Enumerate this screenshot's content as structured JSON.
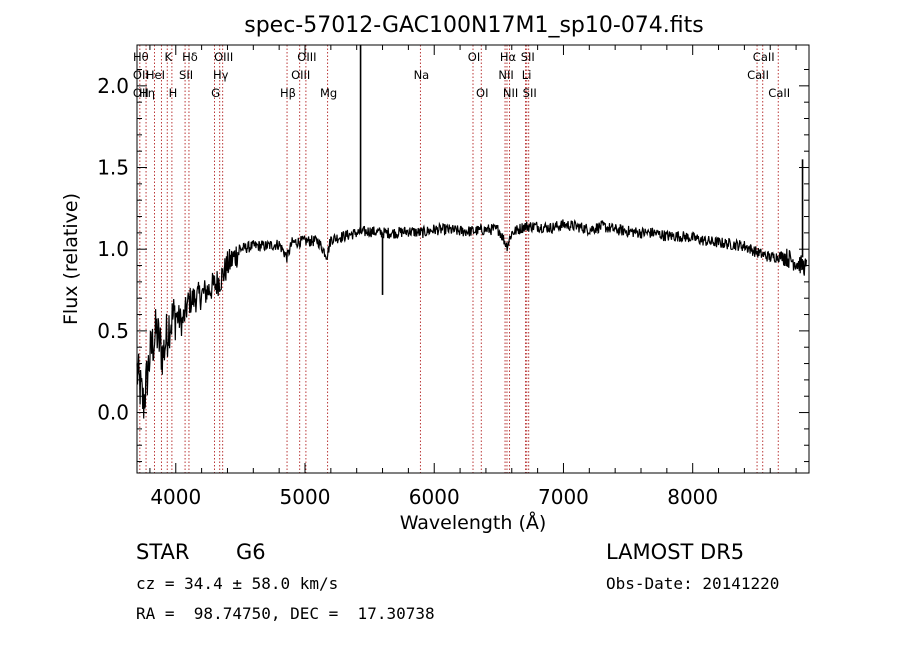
{
  "chart_data": {
    "type": "line",
    "title": "spec-57012-GAC100N17M1_sp10-074.fits",
    "xlabel": "Wavelength (Å)",
    "ylabel": "Flux (relative)",
    "xlim": [
      3700,
      8900
    ],
    "ylim": [
      -0.37,
      2.25
    ],
    "x_ticks": [
      4000,
      5000,
      6000,
      7000,
      8000
    ],
    "y_ticks": [
      "0.0",
      "0.5",
      "1.0",
      "1.5",
      "2.0"
    ],
    "y_tick_values": [
      0.0,
      0.5,
      1.0,
      1.5,
      2.0
    ],
    "grid": false,
    "line_color": "#000000",
    "marker_color": "#b22222",
    "series": [
      {
        "x": [
          3700,
          3750,
          3800,
          3850,
          3900,
          3950,
          4000,
          4050,
          4100,
          4150,
          4200,
          4250,
          4300,
          4350,
          4400,
          4450,
          4500,
          4600,
          4700,
          4800,
          4861,
          4900,
          5000,
          5100,
          5170,
          5200,
          5300,
          5400,
          5500,
          5600,
          5700,
          5800,
          5900,
          6000,
          6100,
          6200,
          6300,
          6400,
          6500,
          6563,
          6600,
          6700,
          6800,
          6900,
          7000,
          7100,
          7200,
          7300,
          7400,
          7500,
          7600,
          7700,
          7800,
          7900,
          8000,
          8100,
          8200,
          8300,
          8400,
          8500,
          8600,
          8700,
          8800,
          8900
        ],
        "y": [
          0.25,
          0.05,
          0.35,
          0.5,
          0.35,
          0.55,
          0.6,
          0.55,
          0.68,
          0.7,
          0.72,
          0.75,
          0.78,
          0.82,
          0.9,
          0.95,
          1.0,
          1.02,
          1.02,
          1.03,
          0.95,
          1.04,
          1.05,
          1.05,
          0.96,
          1.06,
          1.08,
          1.1,
          1.11,
          1.1,
          1.1,
          1.11,
          1.1,
          1.12,
          1.12,
          1.11,
          1.11,
          1.12,
          1.12,
          1.02,
          1.1,
          1.14,
          1.14,
          1.13,
          1.15,
          1.14,
          1.12,
          1.14,
          1.12,
          1.11,
          1.1,
          1.1,
          1.08,
          1.08,
          1.07,
          1.05,
          1.04,
          1.03,
          1.02,
          0.98,
          0.95,
          0.96,
          0.92,
          0.88
        ],
        "spikes": [
          {
            "x": 5430,
            "y": 2.25,
            "base": 1.1
          },
          {
            "x": 5600,
            "y": 0.72,
            "base": 1.08
          },
          {
            "x": 8850,
            "y": 1.55,
            "base": 0.95
          }
        ]
      }
    ],
    "lines": [
      {
        "x": 3722,
        "labels": [
          "Hθ",
          "OII",
          "OII"
        ],
        "rows": [
          0,
          1,
          2
        ]
      },
      {
        "x": 3770,
        "labels": [
          "Hη"
        ],
        "rows": [
          2
        ]
      },
      {
        "x": 3835,
        "labels": [
          "HeI"
        ],
        "rows": [
          1
        ]
      },
      {
        "x": 3889,
        "labels": [],
        "rows": []
      },
      {
        "x": 3934,
        "labels": [
          "K"
        ],
        "rows": [
          0
        ]
      },
      {
        "x": 3970,
        "labels": [
          "H"
        ],
        "rows": [
          2
        ]
      },
      {
        "x": 4072,
        "labels": [
          "SII"
        ],
        "rows": [
          1
        ]
      },
      {
        "x": 4102,
        "labels": [
          "Hδ"
        ],
        "rows": [
          0
        ]
      },
      {
        "x": 4300,
        "labels": [
          "G"
        ],
        "rows": [
          2
        ]
      },
      {
        "x": 4340,
        "labels": [
          "Hγ"
        ],
        "rows": [
          1
        ]
      },
      {
        "x": 4363,
        "labels": [
          "OIII"
        ],
        "rows": [
          0
        ]
      },
      {
        "x": 4861,
        "labels": [
          "Hβ"
        ],
        "rows": [
          2
        ]
      },
      {
        "x": 4959,
        "labels": [
          "OIII"
        ],
        "rows": [
          1
        ]
      },
      {
        "x": 5007,
        "labels": [
          "OIII"
        ],
        "rows": [
          0
        ]
      },
      {
        "x": 5175,
        "labels": [
          "Mg"
        ],
        "rows": [
          2
        ]
      },
      {
        "x": 5893,
        "labels": [
          "Na"
        ],
        "rows": [
          1
        ]
      },
      {
        "x": 6300,
        "labels": [
          "OI"
        ],
        "rows": [
          0
        ]
      },
      {
        "x": 6364,
        "labels": [
          "OI"
        ],
        "rows": [
          2
        ]
      },
      {
        "x": 6548,
        "labels": [
          "NII"
        ],
        "rows": [
          1
        ]
      },
      {
        "x": 6563,
        "labels": [
          "Hα"
        ],
        "rows": [
          0
        ]
      },
      {
        "x": 6583,
        "labels": [
          "NII"
        ],
        "rows": [
          2
        ]
      },
      {
        "x": 6707,
        "labels": [
          "Li"
        ],
        "rows": [
          1
        ]
      },
      {
        "x": 6716,
        "labels": [
          "SII"
        ],
        "rows": [
          0
        ]
      },
      {
        "x": 6731,
        "labels": [
          "SII"
        ],
        "rows": [
          2
        ]
      },
      {
        "x": 8498,
        "labels": [
          "CaII"
        ],
        "rows": [
          1
        ]
      },
      {
        "x": 8542,
        "labels": [
          "CaII"
        ],
        "rows": [
          0
        ]
      },
      {
        "x": 8662,
        "labels": [
          "CaII"
        ],
        "rows": [
          2
        ]
      }
    ]
  },
  "info": {
    "class": "STAR",
    "subclass": "G6",
    "survey": "LAMOST DR5",
    "cz": "cz = 34.4 ± 58.0 km/s",
    "obs_date": "Obs-Date: 20141220",
    "coords": "RA =  98.74750, DEC =  17.30738"
  }
}
